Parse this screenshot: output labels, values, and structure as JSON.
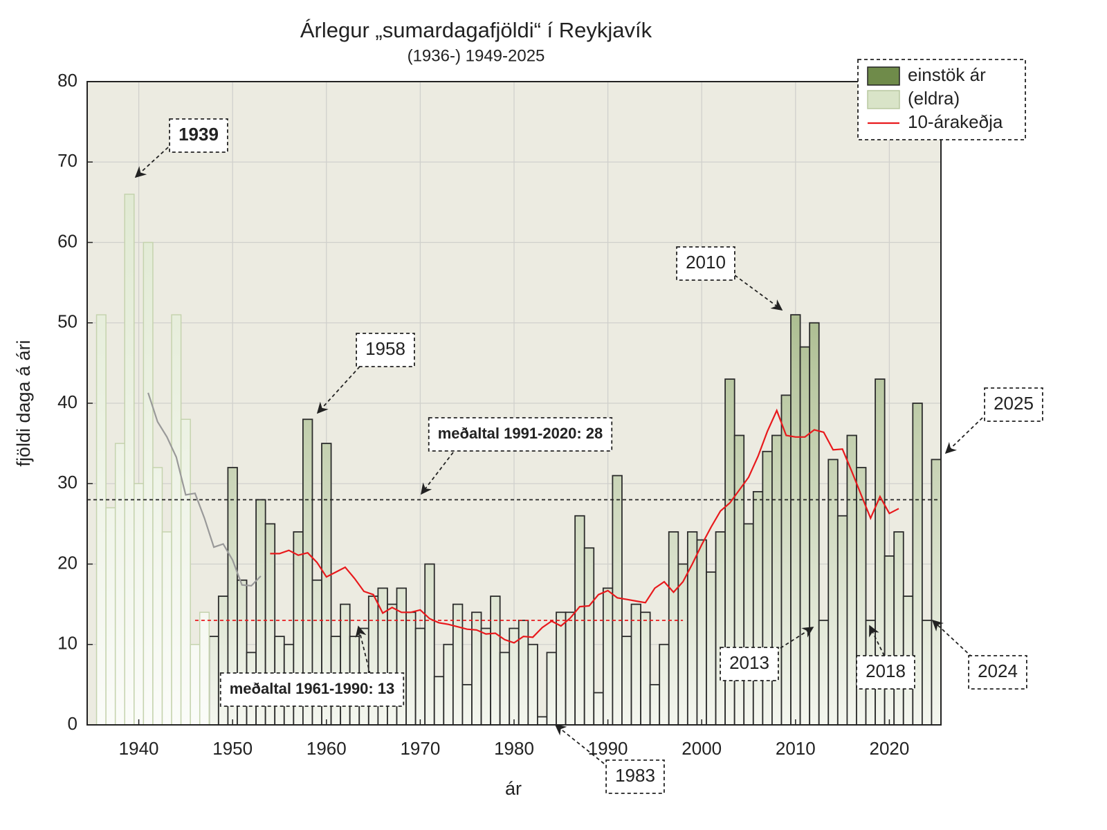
{
  "chart_data": {
    "type": "bar",
    "title": "Árlegur „sumardagafjöldi“ í Reykjavík",
    "subtitle": "(1936-) 1949-2025",
    "x_label": "ár",
    "y_label": "fjöldi daga á ári",
    "x": [
      1936,
      1937,
      1938,
      1939,
      1940,
      1941,
      1942,
      1943,
      1944,
      1945,
      1946,
      1947,
      1948,
      1949,
      1950,
      1951,
      1952,
      1953,
      1954,
      1955,
      1956,
      1957,
      1958,
      1959,
      1960,
      1961,
      1962,
      1963,
      1964,
      1965,
      1966,
      1967,
      1968,
      1969,
      1970,
      1971,
      1972,
      1973,
      1974,
      1975,
      1976,
      1977,
      1978,
      1979,
      1980,
      1981,
      1982,
      1983,
      1984,
      1985,
      1986,
      1987,
      1988,
      1989,
      1990,
      1991,
      1992,
      1993,
      1994,
      1995,
      1996,
      1997,
      1998,
      1999,
      2000,
      2001,
      2002,
      2003,
      2004,
      2005,
      2006,
      2007,
      2008,
      2009,
      2010,
      2011,
      2012,
      2013,
      2014,
      2015,
      2016,
      2017,
      2018,
      2019,
      2020,
      2021,
      2022,
      2023,
      2024,
      2025
    ],
    "series": [
      {
        "name": "einstök ár",
        "color": "#6f8b4a",
        "values": [
          null,
          null,
          null,
          null,
          null,
          null,
          null,
          null,
          null,
          null,
          null,
          null,
          11,
          16,
          32,
          18,
          9,
          28,
          25,
          11,
          10,
          24,
          38,
          18,
          35,
          11,
          15,
          11,
          12,
          16,
          17,
          15,
          17,
          14,
          12,
          20,
          6,
          10,
          15,
          5,
          14,
          12,
          16,
          9,
          12,
          13,
          10,
          1,
          9,
          14,
          14,
          26,
          22,
          4,
          17,
          31,
          11,
          15,
          14,
          5,
          10,
          24,
          20,
          24,
          23,
          19,
          24,
          43,
          36,
          25,
          29,
          34,
          36,
          41,
          51,
          47,
          50,
          13,
          33,
          26,
          36,
          32,
          13,
          43,
          21,
          24,
          16,
          40,
          13,
          33
        ]
      },
      {
        "name": "(eldra)",
        "color": "#d9e4c8",
        "values": [
          51,
          27,
          35,
          66,
          30,
          60,
          32,
          24,
          51,
          38,
          10,
          14,
          null,
          null,
          null,
          null,
          null,
          null,
          null,
          null,
          null,
          null,
          null,
          null,
          null,
          null,
          null,
          null,
          null,
          null,
          null,
          null,
          null,
          null,
          null,
          null,
          null,
          null,
          null,
          null,
          null,
          null,
          null,
          null,
          null,
          null,
          null,
          null,
          null,
          null,
          null,
          null,
          null,
          null,
          null,
          null,
          null,
          null,
          null,
          null,
          null,
          null,
          null,
          null,
          null,
          null,
          null,
          null,
          null,
          null,
          null,
          null,
          null,
          null,
          null,
          null,
          null,
          null,
          null,
          null,
          null,
          null,
          null,
          null,
          null,
          null,
          null,
          null,
          null,
          null
        ]
      },
      {
        "name": "10-árakeðja",
        "color": "#e8191c",
        "type": "line",
        "values": [
          null,
          null,
          null,
          null,
          null,
          null,
          null,
          null,
          null,
          null,
          null,
          null,
          null,
          null,
          null,
          null,
          null,
          null,
          21.3,
          21.3,
          21.7,
          21.1,
          21.4,
          20.2,
          18.4,
          19.0,
          19.6,
          18.2,
          16.6,
          16.2,
          13.9,
          14.6,
          14.0,
          14.0,
          14.3,
          13.2,
          12.7,
          12.5,
          12.2,
          11.9,
          11.8,
          11.3,
          11.4,
          10.6,
          10.2,
          11.0,
          10.9,
          12.1,
          12.9,
          12.3,
          13.3,
          14.7,
          14.8,
          16.2,
          16.7,
          15.8,
          15.6,
          15.4,
          15.2,
          17.0,
          17.8,
          16.5,
          17.8,
          20.0,
          22.4,
          24.6,
          26.6,
          27.6,
          29.2,
          30.8,
          33.4,
          36.5,
          39.1,
          36.0,
          35.8,
          35.8,
          36.7,
          36.4,
          34.2,
          34.3,
          31.5,
          28.6,
          25.7,
          28.4,
          26.3,
          26.9,
          null,
          null,
          null,
          null
        ]
      },
      {
        "color": "#999999",
        "type": "line",
        "values": [
          null,
          null,
          null,
          null,
          null,
          41.3,
          37.7,
          35.8,
          33.3,
          28.6,
          28.8,
          25.7,
          22.1,
          22.5,
          20.5,
          17.4,
          17.3,
          18.5,
          null,
          null,
          null,
          null,
          null,
          null,
          null,
          null,
          null,
          null,
          null,
          null,
          null,
          null,
          null,
          null,
          null,
          null,
          null,
          null,
          null,
          null,
          null,
          null,
          null,
          null,
          null,
          null,
          null,
          null,
          null,
          null,
          null,
          null,
          null,
          null,
          null,
          null,
          null,
          null,
          null,
          null,
          null,
          null,
          null,
          null,
          null,
          null,
          null,
          null,
          null,
          null,
          null,
          null,
          null,
          null,
          null,
          null,
          null,
          null,
          null,
          null,
          null,
          null,
          null,
          null,
          null,
          null,
          null,
          null,
          null,
          null
        ]
      }
    ],
    "hlines": [
      {
        "value": 28,
        "color": "#222222"
      },
      {
        "value": 13,
        "color": "#e8191c",
        "x_range": [
          1946,
          1998
        ]
      }
    ],
    "annotations": [
      {
        "text": "1939",
        "color": "#999999"
      },
      {
        "text": "1958",
        "color": "#222222"
      },
      {
        "text": "meðaltal 1991-2020: 28",
        "color": "#e8191c"
      },
      {
        "text": "2010",
        "color": "#222222"
      },
      {
        "text": "meðaltal 1961-1990: 13",
        "color": "#e8191c"
      },
      {
        "text": "2025",
        "color": "#222222"
      },
      {
        "text": "1983",
        "color": "#222222"
      },
      {
        "text": "2013",
        "color": "#222222"
      },
      {
        "text": "2018",
        "color": "#222222"
      },
      {
        "text": "2024",
        "color": "#222222"
      }
    ],
    "xlim": [
      1934.5,
      2025.5
    ],
    "ylim": [
      0,
      80
    ],
    "xticks": [
      1940,
      1950,
      1960,
      1970,
      1980,
      1990,
      2000,
      2010,
      2020
    ],
    "yticks": [
      0,
      10,
      20,
      30,
      40,
      50,
      60,
      70,
      80
    ],
    "grid": true,
    "legend": "upper right"
  }
}
